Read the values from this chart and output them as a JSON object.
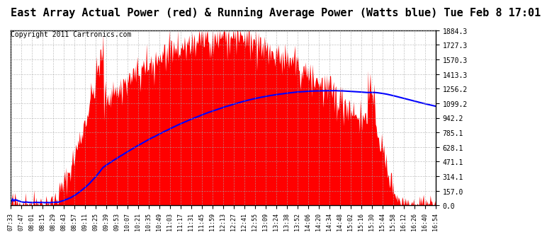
{
  "title": "East Array Actual Power (red) & Running Average Power (Watts blue) Tue Feb 8 17:01",
  "copyright": "Copyright 2011 Cartronics.com",
  "yticks": [
    0.0,
    157.0,
    314.1,
    471.1,
    628.1,
    785.1,
    942.2,
    1099.2,
    1256.2,
    1413.3,
    1570.3,
    1727.3,
    1884.3
  ],
  "ymax": 1884.3,
  "ymin": 0.0,
  "xtick_labels": [
    "07:33",
    "07:47",
    "08:01",
    "08:15",
    "08:29",
    "08:43",
    "08:57",
    "09:11",
    "09:25",
    "09:39",
    "09:53",
    "10:07",
    "10:21",
    "10:35",
    "10:49",
    "11:03",
    "11:17",
    "11:31",
    "11:45",
    "11:59",
    "12:13",
    "12:27",
    "12:41",
    "12:55",
    "13:09",
    "13:24",
    "13:38",
    "13:52",
    "14:06",
    "14:20",
    "14:34",
    "14:48",
    "15:02",
    "15:16",
    "15:30",
    "15:44",
    "15:58",
    "16:12",
    "16:26",
    "16:40",
    "16:54"
  ],
  "fill_color": "#FF0000",
  "line_color": "#0000FF",
  "background_color": "#FFFFFF",
  "grid_color": "#AAAAAA",
  "title_fontsize": 11,
  "copyright_fontsize": 7
}
